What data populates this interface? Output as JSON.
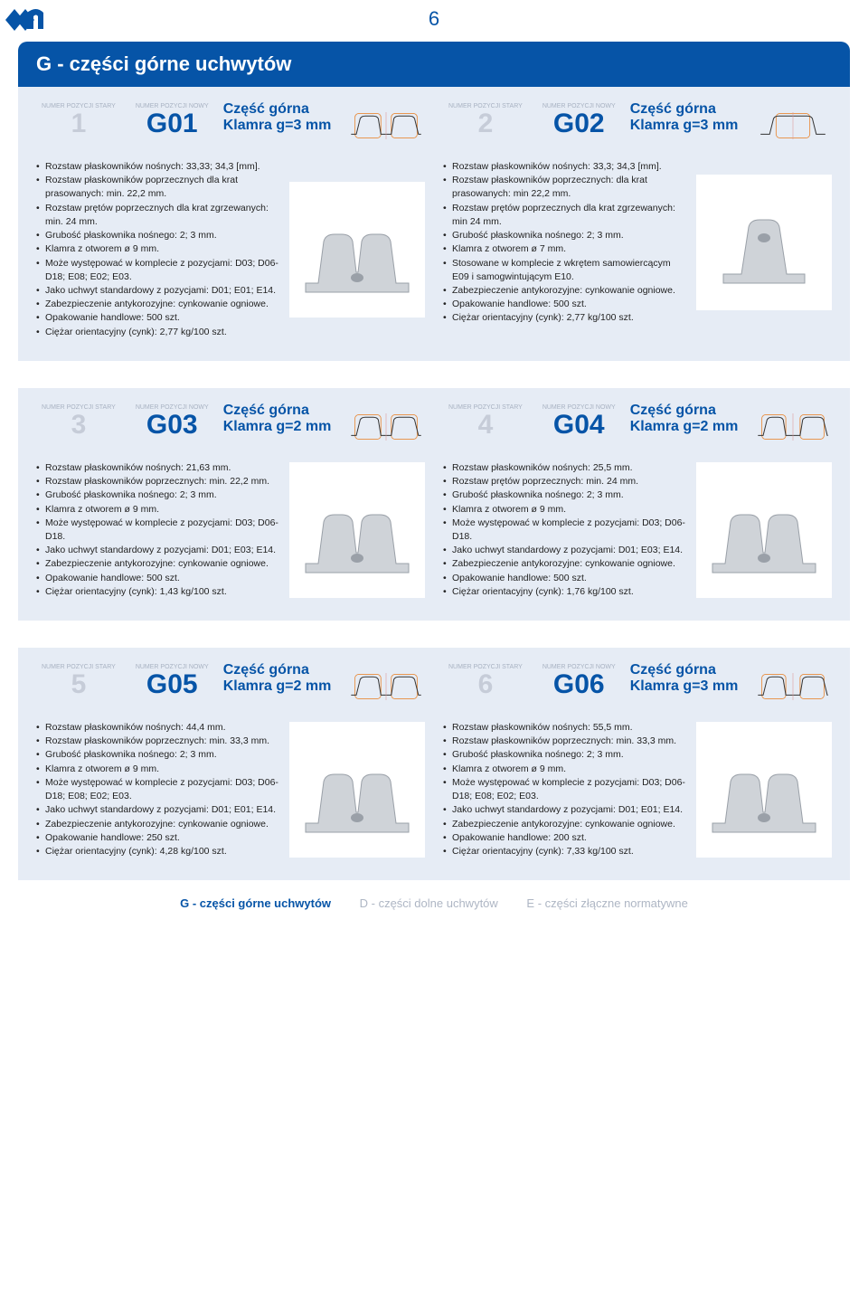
{
  "page_number": "6",
  "section_title": "G - części górne uchwytów",
  "labels": {
    "old_pos": "NUMER POZYCJI STARY",
    "new_pos": "NUMER POZYCJI NOWY"
  },
  "footer": {
    "active": "G - części górne uchwytów",
    "mid": "D - części dolne uchwytów",
    "right": "E - części złączne normatywne"
  },
  "colors": {
    "brand": "#0654a7",
    "panel": "#e6ecf5",
    "orange": "#e88b3a",
    "muted": "#c6ccd8"
  },
  "items": [
    {
      "old": "1",
      "new": "G01",
      "t1": "Część górna",
      "t2": "Klamra g=3 mm",
      "bullets": [
        "Rozstaw płaskowników nośnych: 33,33; 34,3 [mm].",
        "Rozstaw płaskowników poprzecznych dla krat prasowanych: min. 22,2 mm.",
        "Rozstaw prętów poprzecznych dla krat zgrzewanych: min. 24 mm.",
        "Grubość płaskownika nośnego: 2; 3 mm.",
        "Klamra z otworem ø 9 mm.",
        "Może występować w komplecie z pozycjami: D03; D06-D18; E08; E02; E03.",
        "Jako uchwyt standardowy z pozycjami: D01; E01; E14.",
        "Zabezpieczenie antykorozyjne: cynkowanie ogniowe.",
        "Opakowanie handlowe: 500 szt.",
        "Ciężar orientacyjny (cynk): 2,77 kg/100 szt."
      ],
      "profile": "double_m"
    },
    {
      "old": "2",
      "new": "G02",
      "t1": "Część górna",
      "t2": "Klamra g=3 mm",
      "bullets": [
        "Rozstaw płaskowników nośnych: 33,3; 34,3 [mm].",
        "Rozstaw płaskowników poprzecznych: dla krat prasowanych: min 22,2 mm.",
        "Rozstaw prętów poprzecznych dla krat zgrzewanych: min 24 mm.",
        "Grubość płaskownika nośnego: 2; 3 mm.",
        "Klamra z otworem ø 7 mm.",
        "Stosowane w komplecie z wkrętem samowiercącym E09 i samogwintującym E10.",
        "Zabezpieczenie antykorozyjne: cynkowanie ogniowe.",
        "Opakowanie handlowe: 500 szt.",
        "Ciężar orientacyjny (cynk): 2,77 kg/100 szt."
      ],
      "profile": "single_u"
    },
    {
      "old": "3",
      "new": "G03",
      "t1": "Część górna",
      "t2": "Klamra g=2 mm",
      "bullets": [
        "Rozstaw płaskowników nośnych: 21,63 mm.",
        "Rozstaw płaskowników poprzecznych: min. 22,2 mm.",
        "Grubość płaskownika nośnego: 2; 3 mm.",
        "Klamra z otworem ø 9 mm.",
        "Może występować w komplecie z pozycjami: D03; D06-D18.",
        "Jako uchwyt standardowy z pozycjami: D01; E03; E14.",
        "Zabezpieczenie antykorozyjne: cynkowanie ogniowe.",
        "Opakowanie handlowe: 500 szt.",
        "Ciężar orientacyjny (cynk): 1,43 kg/100 szt."
      ],
      "profile": "double_m"
    },
    {
      "old": "4",
      "new": "G04",
      "t1": "Część górna",
      "t2": "Klamra g=2 mm",
      "bullets": [
        "Rozstaw płaskowników nośnych: 25,5 mm.",
        "Rozstaw prętów poprzecznych: min. 24 mm.",
        "Grubość płaskownika nośnego: 2; 3 mm.",
        "Klamra z otworem ø 9 mm.",
        "Może występować w komplecie z pozycjami: D03; D06-D18.",
        "Jako uchwyt standardowy z pozycjami: D01; E03; E14.",
        "Zabezpieczenie antykorozyjne: cynkowanie ogniowe.",
        "Opakowanie handlowe: 500 szt.",
        "Ciężar orientacyjny (cynk): 1,76 kg/100 szt."
      ],
      "profile": "double_m_wide"
    },
    {
      "old": "5",
      "new": "G05",
      "t1": "Część górna",
      "t2": "Klamra g=2 mm",
      "bullets": [
        "Rozstaw płaskowników nośnych: 44,4 mm.",
        "Rozstaw płaskowników poprzecznych: min. 33,3 mm.",
        "Grubość płaskownika nośnego: 2; 3 mm.",
        "Klamra z otworem ø 9 mm.",
        "Może występować w komplecie z pozycjami: D03; D06-D18; E08; E02; E03.",
        "Jako uchwyt standardowy z pozycjami: D01; E01; E14.",
        "Zabezpieczenie antykorozyjne: cynkowanie ogniowe.",
        "Opakowanie handlowe: 250 szt.",
        "Ciężar orientacyjny (cynk): 4,28 kg/100 szt."
      ],
      "profile": "double_m"
    },
    {
      "old": "6",
      "new": "G06",
      "t1": "Część górna",
      "t2": "Klamra g=3 mm",
      "bullets": [
        "Rozstaw płaskowników nośnych: 55,5 mm.",
        "Rozstaw płaskowników poprzecznych: min. 33,3 mm.",
        "Grubość płaskownika nośnego: 2; 3 mm.",
        "Klamra z otworem ø 9 mm.",
        "Może występować w komplecie z pozycjami: D03; D06-D18; E08; E02; E03.",
        "Jako uchwyt standardowy z pozycjami: D01; E01; E14.",
        "Zabezpieczenie antykorozyjne: cynkowanie ogniowe.",
        "Opakowanie handlowe: 200 szt.",
        "Ciężar orientacyjny (cynk): 7,33 kg/100 szt."
      ],
      "profile": "double_m_wide"
    }
  ]
}
